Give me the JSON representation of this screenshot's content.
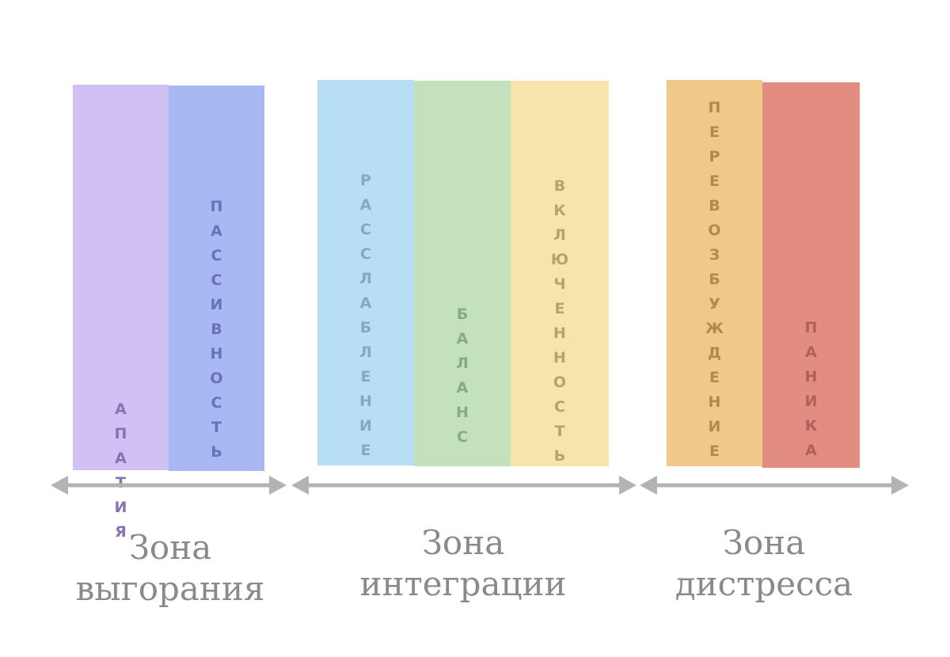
{
  "bars": [
    {
      "id": "apathy",
      "label": "Апатия",
      "color": "#d1c0f4",
      "text_color": "#8a70b4"
    },
    {
      "id": "passivity",
      "label": "Пассивность",
      "color": "#a7b8f2",
      "text_color": "#6673b8"
    },
    {
      "id": "relaxation",
      "label": "Расслабление",
      "color": "#b8def6",
      "text_color": "#87a8bf"
    },
    {
      "id": "balance",
      "label": "Баланс",
      "color": "#c3e1bb",
      "text_color": "#84ad7d"
    },
    {
      "id": "engagement",
      "label": "Включенность",
      "color": "#f5e5ad",
      "text_color": "#b7a26a"
    },
    {
      "id": "overexcitement",
      "label": "Перевозбуждение",
      "color": "#f0c88a",
      "text_color": "#b08a4f"
    },
    {
      "id": "panic",
      "label": "Паника",
      "color": "#e38d82",
      "text_color": "#b1615a"
    }
  ],
  "zones": [
    {
      "line1": "Зона",
      "line2": "выгорания"
    },
    {
      "line1": "Зона",
      "line2": "интеграции"
    },
    {
      "line1": "Зона",
      "line2": "дистресса"
    }
  ],
  "arrow_color": "#b3b3b3",
  "label_color": "#8a8a8a"
}
